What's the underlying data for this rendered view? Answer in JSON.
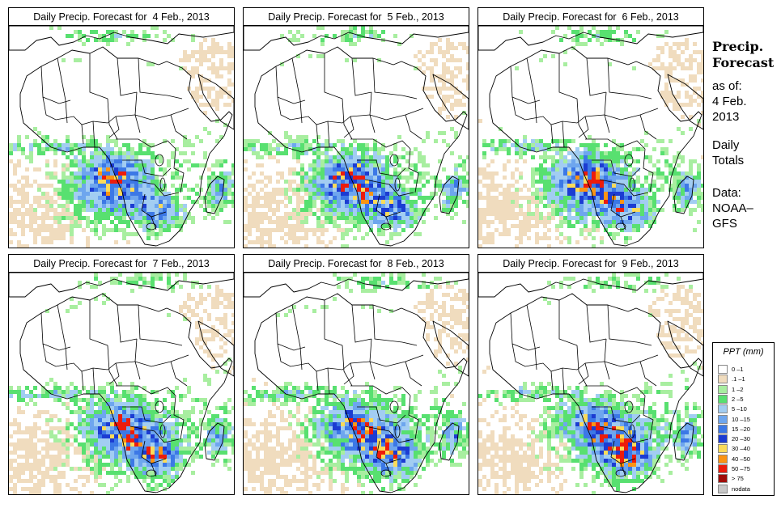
{
  "panels": [
    {
      "title": "Daily Precip. Forecast for  4 Feb., 2013",
      "seed": 11
    },
    {
      "title": "Daily Precip. Forecast for  5 Feb., 2013",
      "seed": 23
    },
    {
      "title": "Daily Precip. Forecast for  6 Feb., 2013",
      "seed": 37
    },
    {
      "title": "Daily Precip. Forecast for  7 Feb., 2013",
      "seed": 41
    },
    {
      "title": "Daily Precip. Forecast for  8 Feb., 2013",
      "seed": 53
    },
    {
      "title": "Daily Precip. Forecast for  9 Feb., 2013",
      "seed": 67
    }
  ],
  "sidebar": {
    "heading1": "Precip.",
    "heading2": "Forecast",
    "asof": "as of:",
    "date1": "4 Feb.",
    "date2": "2013",
    "totals1": "Daily",
    "totals2": "Totals",
    "data1": "Data:",
    "data2": "NOAA–",
    "data3": "GFS"
  },
  "legend": {
    "title": "PPT (mm)",
    "items": [
      {
        "label": "0 –1",
        "color": "#ffffff"
      },
      {
        "label": ".1 –1",
        "color": "#f0dcbe"
      },
      {
        "label": "1 –2",
        "color": "#a8eea0"
      },
      {
        "label": "2 –5",
        "color": "#58e070"
      },
      {
        "label": "5 –10",
        "color": "#a2cdf2"
      },
      {
        "label": "10 –15",
        "color": "#6ea6ee"
      },
      {
        "label": "15 –20",
        "color": "#3c78e6"
      },
      {
        "label": "20 –30",
        "color": "#1c3cd2"
      },
      {
        "label": "30 –40",
        "color": "#fbdb5a"
      },
      {
        "label": "40 –50",
        "color": "#fb9414"
      },
      {
        "label": "50 –75",
        "color": "#ec1c0c"
      },
      {
        "label": "> 75",
        "color": "#a00c08"
      },
      {
        "label": "nodata",
        "color": "#c8c8c8"
      }
    ]
  }
}
